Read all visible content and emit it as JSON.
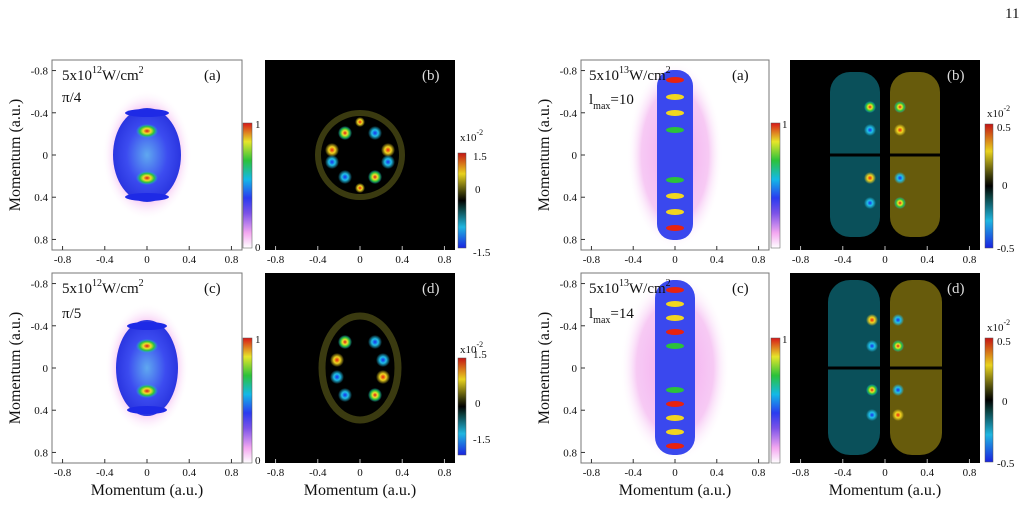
{
  "page_number": "11",
  "figure_left": {
    "row_a": {
      "intensity": "5x10",
      "exp": "12",
      "unit": "W/cm",
      "unit_exp": "2",
      "param": "π/4",
      "label_left": "(a)",
      "label_right": "(b)"
    },
    "row_c": {
      "intensity": "5x10",
      "exp": "12",
      "unit": "W/cm",
      "unit_exp": "2",
      "param": "π/5",
      "label_left": "(c)",
      "label_right": "(d)"
    },
    "colorbar_left": {
      "max": "1",
      "min": "0"
    },
    "colorbar_right": {
      "scale": "x10",
      "scale_exp": "-2",
      "max": "1.5",
      "mid": "0",
      "min": "-1.5"
    }
  },
  "figure_right": {
    "row_a": {
      "intensity": "5x10",
      "exp": "13",
      "unit": "W/cm",
      "unit_exp": "2",
      "param": "l",
      "param_sub": "max",
      "param_val": "=10",
      "label_left": "(a)",
      "label_right": "(b)"
    },
    "row_c": {
      "intensity": "5x10",
      "exp": "13",
      "unit": "W/cm",
      "unit_exp": "2",
      "param": "l",
      "param_sub": "max",
      "param_val": "=14",
      "label_left": "(c)",
      "label_right": "(d)"
    },
    "colorbar_left": {
      "max": "1",
      "min": "0"
    },
    "colorbar_right": {
      "scale": "x10",
      "scale_exp": "-2",
      "max": "0.5",
      "mid": "0",
      "min": "-0.5"
    }
  },
  "axis_label": "Momentum (a.u.)",
  "y_ticks": [
    "0.8",
    "0.4",
    "0",
    "-0.4",
    "-0.8"
  ],
  "x_ticks": [
    "-0.8",
    "-0.4",
    "0",
    "0.4",
    "0.8"
  ],
  "chart_data": {
    "type": "heatmap",
    "xlabel": "Momentum (a.u.)",
    "ylabel": "Momentum (a.u.)",
    "xlim": [
      -0.9,
      0.9
    ],
    "ylim": [
      -0.9,
      0.9
    ],
    "x_ticks": [
      -0.8,
      -0.4,
      0,
      0.4,
      0.8
    ],
    "y_ticks": [
      -0.8,
      -0.4,
      0,
      0.4,
      0.8
    ],
    "panels": [
      {
        "label": "(a)",
        "intensity": "5x10^12 W/cm^2",
        "param": "π/4",
        "colorbar": [
          0,
          1
        ]
      },
      {
        "label": "(b)",
        "colorbar": [
          -1.5,
          1.5
        ],
        "scale": "x10^-2"
      },
      {
        "label": "(c)",
        "intensity": "5x10^12 W/cm^2",
        "param": "π/5",
        "colorbar": [
          0,
          1
        ]
      },
      {
        "label": "(d)",
        "colorbar": [
          -1.5,
          1.5
        ],
        "scale": "x10^-2"
      },
      {
        "label": "(a)",
        "intensity": "5x10^13 W/cm^2",
        "param": "l_max=10",
        "colorbar": [
          0,
          1
        ]
      },
      {
        "label": "(b)",
        "colorbar": [
          -0.5,
          0.5
        ],
        "scale": "x10^-2"
      },
      {
        "label": "(c)",
        "intensity": "5x10^13 W/cm^2",
        "param": "l_max=14",
        "colorbar": [
          0,
          1
        ]
      },
      {
        "label": "(d)",
        "colorbar": [
          -0.5,
          0.5
        ],
        "scale": "x10^-2"
      }
    ]
  }
}
